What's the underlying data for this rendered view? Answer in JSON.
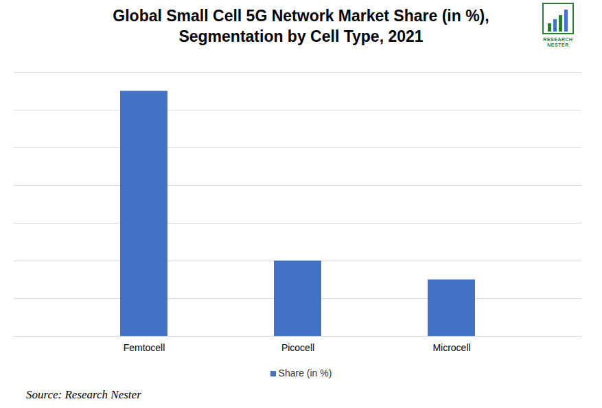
{
  "chart_data": {
    "type": "bar",
    "title": "Global Small Cell 5G Network Market Share (in %), Segmentation by Cell Type, 2021",
    "categories": [
      "Femtocell",
      "Picocell",
      "Microcell"
    ],
    "series": [
      {
        "name": "Share (in %)",
        "color": "#4472c4",
        "values": [
          65,
          20,
          15
        ]
      }
    ],
    "ylim": [
      0,
      70
    ],
    "yticks": [
      0,
      10,
      20,
      30,
      40,
      50,
      60,
      70
    ],
    "grid": true,
    "legend": "bottom",
    "tick_labels": "x",
    "source": "Source: Research Nester",
    "logo": "RESEARCH NESTER"
  }
}
